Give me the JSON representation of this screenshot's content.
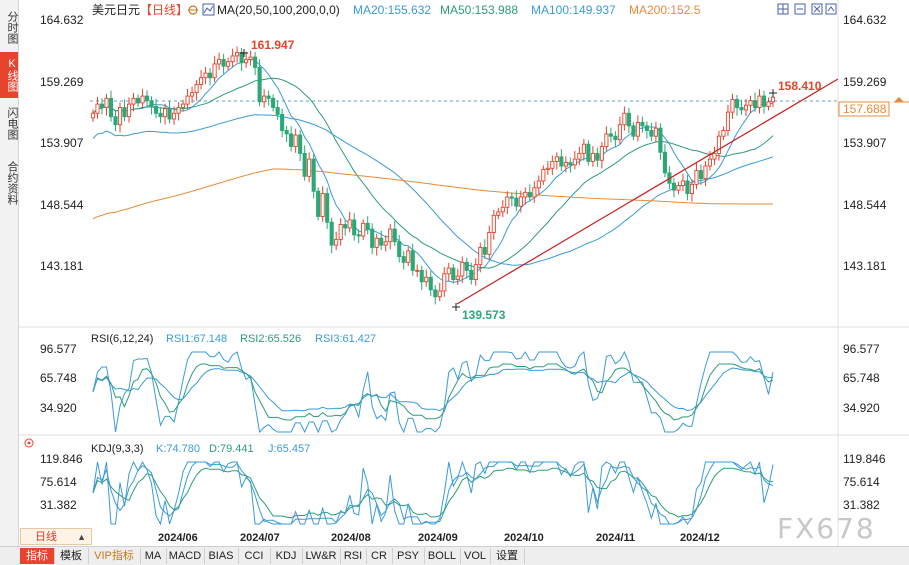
{
  "sidebar": {
    "tabs": [
      {
        "label": "分时图",
        "active": false
      },
      {
        "label": "K线图",
        "active": true
      },
      {
        "label": "闪电图",
        "active": false
      },
      {
        "label": "合约资料",
        "active": false
      }
    ]
  },
  "header": {
    "symbol": "美元日元",
    "period": "【日线】",
    "ma_title": "MA(20,50,100,200,0,0)",
    "ma_values": [
      {
        "label": "MA20:155.632",
        "color": "#3a9bd8"
      },
      {
        "label": "MA50:153.988",
        "color": "#2e9d76"
      },
      {
        "label": "MA100:149.937",
        "color": "#3a9bd8"
      },
      {
        "label": "MA200:152.5",
        "color": "#e58b3a"
      }
    ],
    "window_icons": [
      "grid-icon",
      "minus-icon",
      "close-icon",
      "up-arrow-icon"
    ]
  },
  "main_chart": {
    "y_ticks": [
      "164.632",
      "159.269",
      "153.907",
      "148.544",
      "143.181"
    ],
    "high_label": "161.947",
    "low_label": "139.573",
    "last_high_label": "158.410",
    "current_price_label": "157.688",
    "up_color": "#e8432c",
    "down_color": "#2aa876"
  },
  "rsi_panel": {
    "title": "RSI(6,12,24)",
    "values": [
      {
        "label": "RSI1:67.148",
        "color": "#3a9bd8"
      },
      {
        "label": "RSI2:65.526",
        "color": "#2e9d76"
      },
      {
        "label": "RSI3:61.427",
        "color": "#3a9bd8"
      }
    ],
    "y_ticks": [
      "96.577",
      "65.748",
      "34.920"
    ]
  },
  "kdj_panel": {
    "title": "KDJ(9,3,3)",
    "values": [
      {
        "label": "K:74.780",
        "color": "#3a9bd8"
      },
      {
        "label": "D:79.441",
        "color": "#2e9d76"
      },
      {
        "label": "J:65.457",
        "color": "#3a9bd8"
      }
    ],
    "y_ticks": [
      "119.846",
      "75.614",
      "31.382"
    ]
  },
  "x_axis": {
    "ticks": [
      "2024/06",
      "2024/07",
      "2024/08",
      "2024/09",
      "2024/10",
      "2024/11",
      "2024/12"
    ]
  },
  "period_selector": {
    "label": "日线"
  },
  "bottom_bar": {
    "buttons": [
      "指标",
      "模板",
      "VIP指标",
      "MA",
      "MACD",
      "BIAS",
      "CCI",
      "KDJ",
      "LW&R",
      "RSI",
      "CR",
      "PSY",
      "BOLL",
      "VOL",
      "设置"
    ]
  },
  "watermark": "FX678",
  "chart_data": {
    "type": "candlestick",
    "title": "美元日元 日线",
    "y_range": [
      139.573,
      164.632
    ],
    "series": [
      {
        "name": "MA20",
        "last": 155.632
      },
      {
        "name": "MA50",
        "last": 153.988
      },
      {
        "name": "MA100",
        "last": 149.937
      },
      {
        "name": "MA200",
        "last": 152.5
      }
    ],
    "close_path": [
      156.5,
      157.3,
      157.0,
      157.8,
      156.2,
      155.5,
      157.0,
      156.2,
      157.3,
      157.8,
      157.4,
      158.0,
      157.6,
      157.1,
      156.5,
      156.2,
      156.9,
      156.0,
      156.5,
      157.0,
      157.3,
      158.0,
      158.3,
      159.0,
      159.6,
      160.0,
      159.6,
      160.8,
      161.2,
      160.6,
      161.0,
      161.5,
      161.8,
      160.9,
      161.2,
      161.4,
      160.5,
      157.5,
      158.0,
      157.8,
      157.0,
      156.4,
      155.0,
      154.7,
      153.6,
      154.6,
      153.0,
      151.0,
      152.5,
      149.7,
      147.5,
      149.5,
      147.0,
      145.0,
      145.5,
      146.8,
      146.5,
      147.2,
      145.9,
      145.8,
      146.9,
      146.4,
      144.8,
      145.6,
      145.0,
      145.3,
      146.4,
      145.3,
      144.0,
      143.5,
      144.5,
      142.8,
      142.8,
      141.8,
      142.2,
      141.1,
      140.5,
      141.0,
      142.5,
      143.0,
      142.0,
      142.3,
      143.5,
      142.8,
      142.0,
      143.3,
      144.8,
      144.2,
      146.1,
      147.6,
      147.9,
      148.3,
      149.2,
      149.1,
      148.4,
      149.2,
      149.6,
      149.2,
      150.0,
      150.6,
      151.6,
      151.7,
      152.3,
      152.7,
      151.9,
      152.2,
      152.0,
      152.5,
      153.0,
      153.8,
      152.3,
      153.0,
      152.4,
      153.6,
      154.7,
      154.5,
      154.2,
      155.5,
      156.5,
      155.4,
      154.5,
      155.7,
      155.4,
      155.0,
      154.5,
      155.2,
      153.1,
      151.3,
      150.4,
      149.8,
      150.2,
      150.6,
      149.5,
      150.3,
      151.5,
      150.8,
      151.9,
      152.5,
      153.0,
      154.5,
      155.0,
      156.6,
      157.7,
      157.0,
      156.8,
      157.2,
      157.6,
      157.0,
      158.0,
      157.1,
      157.5,
      157.9
    ]
  }
}
